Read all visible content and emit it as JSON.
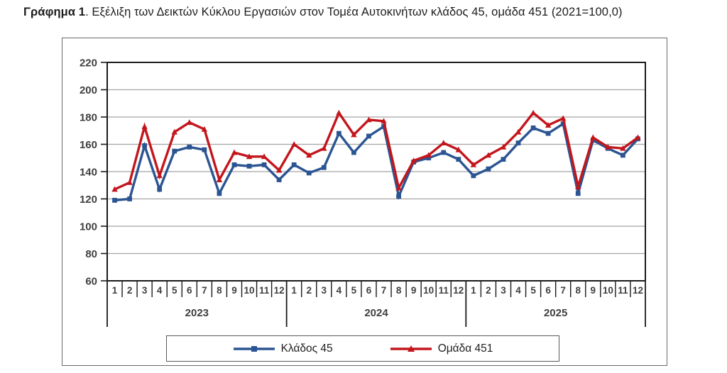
{
  "title": {
    "bold": "Γράφημα 1",
    "rest": ". Εξέλιξη των Δεικτών Κύκλου Εργασιών στον Τομέα Αυτοκινήτων κλάδος 45, ομάδα 451 (2021=100,0)"
  },
  "chart_data": {
    "type": "line",
    "title": "Εξέλιξη των Δεικτών Κύκλου Εργασιών στον Τομέα Αυτοκινήτων κλάδος 45, ομάδα 451 (2021=100,0)",
    "index_base_note": "2021=100,0",
    "years": [
      "2023",
      "2024",
      "2025"
    ],
    "month_labels": [
      "1",
      "2",
      "3",
      "4",
      "5",
      "6",
      "7",
      "8",
      "9",
      "10",
      "11",
      "12"
    ],
    "yticks": [
      220,
      200,
      180,
      160,
      140,
      120,
      100,
      80,
      60
    ],
    "ylim": [
      60,
      220
    ],
    "grid": true,
    "legend_position": "bottom",
    "colors": {
      "series1": "#2B5592",
      "series2": "#C3161C",
      "gridline": "#a3a3a3",
      "axis_text": "#3f3f3f",
      "plot_border": "#1a1a1a"
    },
    "series": [
      {
        "name": "Κλάδος 45",
        "color": "#2B5592",
        "marker": "square",
        "values": [
          119,
          120,
          159,
          127,
          155,
          158,
          156,
          124,
          145,
          144,
          145,
          134,
          145,
          139,
          143,
          168,
          154,
          166,
          173,
          122,
          147,
          150,
          154,
          149,
          137,
          142,
          149,
          161,
          172,
          168,
          175,
          124,
          163,
          157,
          152,
          164
        ]
      },
      {
        "name": "Ομάδα 451",
        "color": "#C3161C",
        "marker": "triangle",
        "values": [
          127,
          132,
          173,
          137,
          169,
          176,
          171,
          134,
          154,
          151,
          151,
          141,
          160,
          152,
          157,
          183,
          167,
          178,
          177,
          128,
          148,
          152,
          161,
          156,
          145,
          152,
          158,
          169,
          183,
          174,
          179,
          129,
          165,
          158,
          157,
          165
        ]
      }
    ]
  }
}
